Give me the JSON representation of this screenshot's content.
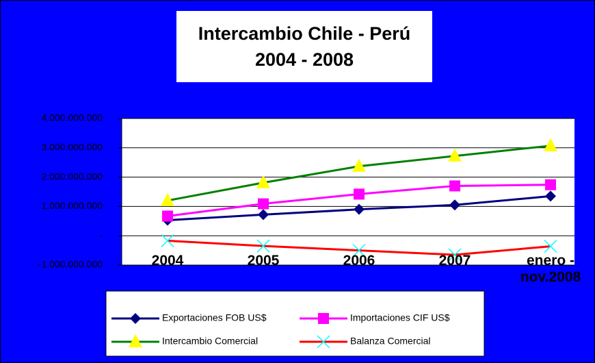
{
  "chart_data": {
    "type": "line",
    "title": "Intercambio Chile - Perú",
    "subtitle": "2004 - 2008",
    "categories": [
      "2004",
      "2005",
      "2006",
      "2007",
      "enero - nov.2008"
    ],
    "series": [
      {
        "name": "Exportaciones FOB US$",
        "color": "#000080",
        "marker": "diamond",
        "values": [
          530000000,
          720000000,
          900000000,
          1050000000,
          1350000000
        ]
      },
      {
        "name": "Importaciones CIF US$",
        "color": "#ff00ff",
        "marker": "square",
        "values": [
          670000000,
          1090000000,
          1420000000,
          1700000000,
          1740000000
        ]
      },
      {
        "name": "Intercambio Comercial",
        "color": "#008000",
        "marker": "triangle",
        "marker_color": "#ffff00",
        "values": [
          1200000000,
          1810000000,
          2370000000,
          2720000000,
          3070000000
        ]
      },
      {
        "name": "Balanza Comercial",
        "color": "#ff0000",
        "marker": "x",
        "marker_color": "#00ffff",
        "values": [
          -170000000,
          -350000000,
          -500000000,
          -650000000,
          -360000000
        ]
      }
    ],
    "ylim": [
      -1000000000,
      4000000000
    ],
    "yticks": [
      {
        "value": -1000000000,
        "label": "-1.000.000.000"
      },
      {
        "value": 0,
        "label": "-"
      },
      {
        "value": 1000000000,
        "label": "1.000.000.000"
      },
      {
        "value": 2000000000,
        "label": "2.000.000.000"
      },
      {
        "value": 3000000000,
        "label": "3.000.000.000"
      },
      {
        "value": 4000000000,
        "label": "4.000.000.000"
      }
    ],
    "grid": true,
    "legend": "bottom"
  }
}
